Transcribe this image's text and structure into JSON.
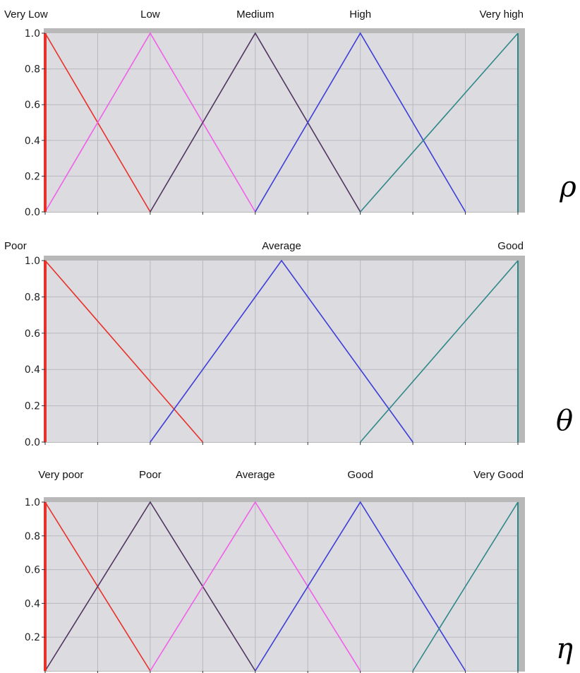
{
  "colors": {
    "plot_bg": "#dcdbe0",
    "grid": "#b9b9c2",
    "frame": "#b8b8b8",
    "axis": "#333333",
    "red": "#e8312a",
    "pink": "#f060e8",
    "purple": "#503560",
    "blue": "#3e3ed8",
    "teal": "#2f8888"
  },
  "chart_data": [
    {
      "type": "line",
      "symbol": "ρ",
      "ylim": [
        0,
        1
      ],
      "yticks": [
        "0.0",
        "0.2",
        "0.4",
        "0.6",
        "0.8",
        "1.0"
      ],
      "xlim": [
        0,
        9
      ],
      "grid": true,
      "series": [
        {
          "name": "Very Low",
          "color": "red",
          "points": [
            [
              0,
              1
            ],
            [
              2,
              0
            ]
          ]
        },
        {
          "name": "Low",
          "color": "pink",
          "points": [
            [
              0,
              0
            ],
            [
              2,
              1
            ],
            [
              4,
              0
            ]
          ]
        },
        {
          "name": "Medium",
          "color": "purple",
          "points": [
            [
              2,
              0
            ],
            [
              4,
              1
            ],
            [
              6,
              0
            ]
          ]
        },
        {
          "name": "High",
          "color": "blue",
          "points": [
            [
              4,
              0
            ],
            [
              6,
              1
            ],
            [
              8,
              0
            ]
          ]
        },
        {
          "name": "Very high",
          "color": "teal",
          "points": [
            [
              6,
              0
            ],
            [
              9,
              1
            ]
          ]
        }
      ],
      "label_x": [
        0,
        2,
        4,
        6,
        9
      ]
    },
    {
      "type": "line",
      "symbol": "θ",
      "ylim": [
        0,
        1
      ],
      "yticks": [
        "0.0",
        "0.2",
        "0.4",
        "0.6",
        "0.8",
        "1.0"
      ],
      "xlim": [
        0,
        9
      ],
      "grid": true,
      "series": [
        {
          "name": "Poor",
          "color": "red",
          "points": [
            [
              0,
              1
            ],
            [
              3,
              0
            ]
          ]
        },
        {
          "name": "Average",
          "color": "blue",
          "points": [
            [
              2,
              0
            ],
            [
              4.5,
              1
            ],
            [
              7,
              0
            ]
          ]
        },
        {
          "name": "Good",
          "color": "teal",
          "points": [
            [
              6,
              0
            ],
            [
              9,
              1
            ]
          ]
        }
      ],
      "label_x": [
        0,
        4.5,
        9
      ]
    },
    {
      "type": "line",
      "symbol": "η",
      "ylim": [
        0,
        1
      ],
      "yticks": [
        "0.2",
        "0.4",
        "0.6",
        "0.8",
        "1.0"
      ],
      "xlim": [
        0,
        9
      ],
      "grid": true,
      "series": [
        {
          "name": "Very poor",
          "color": "red",
          "points": [
            [
              0,
              1
            ],
            [
              2,
              0
            ]
          ]
        },
        {
          "name": "Poor",
          "color": "purple",
          "points": [
            [
              0,
              0
            ],
            [
              2,
              1
            ],
            [
              4,
              0
            ]
          ]
        },
        {
          "name": "Average",
          "color": "pink",
          "points": [
            [
              2,
              0
            ],
            [
              4,
              1
            ],
            [
              6,
              0
            ]
          ]
        },
        {
          "name": "Good",
          "color": "blue",
          "points": [
            [
              4,
              0
            ],
            [
              6,
              1
            ],
            [
              8,
              0
            ]
          ]
        },
        {
          "name": "Very Good",
          "color": "teal",
          "points": [
            [
              7,
              0
            ],
            [
              9,
              1
            ]
          ]
        }
      ],
      "label_x": [
        0.3,
        2,
        4,
        6,
        9
      ]
    }
  ]
}
